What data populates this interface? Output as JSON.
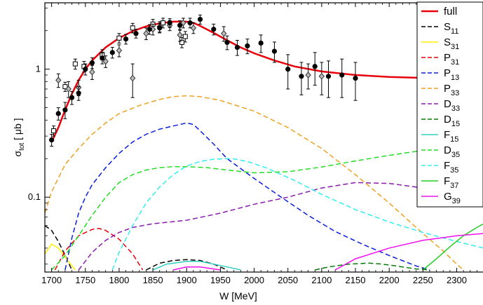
{
  "chart_data": {
    "type": "line",
    "title": "",
    "xlabel": "W [MeV]",
    "ylabel": "σ_tot [ μb ]",
    "ylabel_parts": {
      "sigma": "σ",
      "sub": "tot",
      "rest": " [ μb ]"
    },
    "xlim": [
      1690,
      2340
    ],
    "ylim": [
      0.026,
      3.3
    ],
    "yscale": "log",
    "x_ticks": [
      1700,
      1750,
      1800,
      1850,
      1900,
      1950,
      2000,
      2050,
      2100,
      2150,
      2200,
      2250,
      2300
    ],
    "y_ticks": [
      {
        "value": 0.1,
        "label": "0.1"
      },
      {
        "value": 1,
        "label": "1"
      }
    ],
    "grid": false,
    "legend_position": "right",
    "series": [
      {
        "name": "full",
        "label_main": "full",
        "label_sub": "",
        "color": "#e8000b",
        "dash": "solid",
        "width": 2.5,
        "x": [
          1700,
          1710,
          1720,
          1730,
          1740,
          1750,
          1760,
          1780,
          1800,
          1820,
          1840,
          1860,
          1880,
          1900,
          1910,
          1920,
          1940,
          1960,
          1980,
          2000,
          2030,
          2060,
          2100,
          2150,
          2200,
          2250,
          2300,
          2340
        ],
        "y": [
          0.27,
          0.35,
          0.48,
          0.64,
          0.82,
          1.0,
          1.17,
          1.48,
          1.75,
          1.98,
          2.16,
          2.28,
          2.35,
          2.35,
          2.3,
          2.18,
          1.92,
          1.68,
          1.48,
          1.33,
          1.17,
          1.05,
          0.96,
          0.9,
          0.87,
          0.855,
          0.845,
          0.84
        ]
      },
      {
        "name": "S11",
        "label_main": "S",
        "label_sub": "11",
        "color": "#000000",
        "dash": "dashed",
        "width": 1.5,
        "x": [
          1690,
          1700,
          1710,
          1720,
          1730
        ],
        "y": [
          0.06,
          0.055,
          0.045,
          0.035,
          0.027
        ],
        "x2": [
          1840,
          1860,
          1880,
          1900,
          1920,
          1940,
          1960
        ],
        "y2": [
          0.027,
          0.0305,
          0.032,
          0.0325,
          0.032,
          0.03,
          0.027
        ]
      },
      {
        "name": "S31",
        "label_main": "S",
        "label_sub": "31",
        "color": "#ffee00",
        "dash": "solid",
        "width": 1.5,
        "x": [
          1690,
          1700,
          1710,
          1720,
          1735
        ],
        "y": [
          0.036,
          0.043,
          0.04,
          0.034,
          0.027
        ]
      },
      {
        "name": "P31",
        "label_main": "P",
        "label_sub": "31",
        "color": "#e8000b",
        "dash": "dashed",
        "width": 1.5,
        "x": [
          1705,
          1720,
          1740,
          1760,
          1770,
          1780,
          1800,
          1820,
          1835
        ],
        "y": [
          0.027,
          0.038,
          0.05,
          0.056,
          0.057,
          0.055,
          0.047,
          0.036,
          0.027
        ]
      },
      {
        "name": "P13",
        "label_main": "P",
        "label_sub": "13",
        "color": "#0a1ee0",
        "dash": "dashed",
        "width": 1.5,
        "x": [
          1720,
          1730,
          1740,
          1750,
          1760,
          1780,
          1800,
          1820,
          1840,
          1860,
          1880,
          1900,
          1910,
          1920,
          1940,
          1960,
          2000,
          2040,
          2080,
          2120,
          2160,
          2200,
          2240,
          2260
        ],
        "y": [
          0.027,
          0.048,
          0.075,
          0.1,
          0.125,
          0.17,
          0.22,
          0.27,
          0.31,
          0.34,
          0.36,
          0.38,
          0.37,
          0.33,
          0.26,
          0.2,
          0.14,
          0.1,
          0.072,
          0.054,
          0.043,
          0.035,
          0.029,
          0.027
        ]
      },
      {
        "name": "P33",
        "label_main": "P",
        "label_sub": "33",
        "color": "#f0a020",
        "dash": "dashed",
        "width": 1.5,
        "x": [
          1690,
          1700,
          1720,
          1740,
          1760,
          1780,
          1800,
          1830,
          1860,
          1880,
          1900,
          1920,
          1950,
          2000,
          2050,
          2100,
          2150,
          2200,
          2250,
          2280,
          2300,
          2310
        ],
        "y": [
          0.075,
          0.11,
          0.18,
          0.24,
          0.31,
          0.38,
          0.45,
          0.52,
          0.58,
          0.61,
          0.62,
          0.61,
          0.57,
          0.47,
          0.35,
          0.24,
          0.15,
          0.09,
          0.052,
          0.038,
          0.03,
          0.027
        ]
      },
      {
        "name": "D33",
        "label_main": "D",
        "label_sub": "33",
        "color": "#8a1bb0",
        "dash": "dashed",
        "width": 1.5,
        "x": [
          1740,
          1760,
          1780,
          1800,
          1820,
          1850,
          1900,
          1950,
          2000,
          2050,
          2100,
          2150,
          2200,
          2250,
          2300,
          2340
        ],
        "y": [
          0.027,
          0.037,
          0.046,
          0.053,
          0.058,
          0.062,
          0.066,
          0.075,
          0.088,
          0.1,
          0.118,
          0.13,
          0.128,
          0.118,
          0.1,
          0.092
        ]
      },
      {
        "name": "D15",
        "label_main": "D",
        "label_sub": "15",
        "color": "#067a06",
        "dash": "dashed",
        "width": 1.5,
        "x": [
          2090,
          2110,
          2140,
          2170,
          2190,
          2210,
          2240,
          2260
        ],
        "y": [
          0.027,
          0.0285,
          0.03,
          0.0305,
          0.03,
          0.029,
          0.0275,
          0.027
        ]
      },
      {
        "name": "F15",
        "label_main": "F",
        "label_sub": "15",
        "color": "#30d0c0",
        "dash": "solid",
        "width": 1.5,
        "x": [
          1850,
          1870,
          1900,
          1920,
          1940,
          1960,
          1980
        ],
        "y": [
          0.027,
          0.03,
          0.0315,
          0.0315,
          0.03,
          0.0285,
          0.027
        ]
      },
      {
        "name": "D35",
        "label_main": "D",
        "label_sub": "35",
        "color": "#22dd22",
        "dash": "dashed",
        "width": 1.5,
        "x": [
          1700,
          1720,
          1740,
          1760,
          1780,
          1800,
          1820,
          1840,
          1860,
          1880,
          1900,
          1930,
          1960,
          2000,
          2050,
          2100,
          2150,
          2200,
          2250,
          2300,
          2340
        ],
        "y": [
          0.027,
          0.035,
          0.05,
          0.072,
          0.1,
          0.13,
          0.15,
          0.163,
          0.17,
          0.173,
          0.173,
          0.17,
          0.163,
          0.155,
          0.158,
          0.172,
          0.192,
          0.212,
          0.232,
          0.25,
          0.262
        ]
      },
      {
        "name": "F35",
        "label_main": "F",
        "label_sub": "35",
        "color": "#33eeee",
        "dash": "dashed",
        "width": 1.5,
        "x": [
          1790,
          1800,
          1820,
          1840,
          1860,
          1880,
          1900,
          1920,
          1940,
          1960,
          1970,
          1990,
          2020,
          2060,
          2100,
          2150,
          2200,
          2250,
          2300,
          2340
        ],
        "y": [
          0.027,
          0.037,
          0.06,
          0.09,
          0.12,
          0.15,
          0.175,
          0.19,
          0.198,
          0.2,
          0.199,
          0.19,
          0.168,
          0.135,
          0.105,
          0.08,
          0.064,
          0.053,
          0.045,
          0.04
        ]
      },
      {
        "name": "F37",
        "label_main": "F",
        "label_sub": "37",
        "color": "#22cc22",
        "dash": "solid",
        "width": 1.5,
        "x": [
          2250,
          2270,
          2290,
          2310,
          2330,
          2340
        ],
        "y": [
          0.027,
          0.033,
          0.041,
          0.05,
          0.058,
          0.062
        ]
      },
      {
        "name": "G39",
        "label_main": "G",
        "label_sub": "39",
        "color": "#ee11ee",
        "dash": "solid",
        "width": 1.5,
        "x": [
          1880,
          1900,
          1920,
          1940,
          1950
        ],
        "y": [
          0.027,
          0.0285,
          0.0285,
          0.0275,
          0.027
        ],
        "x2": [
          2120,
          2150,
          2200,
          2250,
          2300,
          2340
        ],
        "y2": [
          0.027,
          0.033,
          0.04,
          0.046,
          0.05,
          0.052
        ]
      }
    ],
    "data_filled": {
      "name": "data (filled circles)",
      "x": [
        1700,
        1710,
        1720,
        1730,
        1740,
        1750,
        1760,
        1775,
        1790,
        1810,
        1825,
        1845,
        1860,
        1875,
        1890,
        1905,
        1920,
        1940,
        1960,
        1975,
        1990,
        2010,
        2030,
        2050,
        2070,
        2090,
        2110,
        2130,
        2150
      ],
      "y": [
        0.28,
        0.45,
        0.48,
        0.6,
        0.65,
        1.0,
        1.12,
        1.22,
        1.35,
        1.72,
        1.9,
        2.05,
        2.1,
        2.3,
        2.2,
        2.3,
        2.45,
        2.05,
        1.62,
        1.48,
        1.52,
        1.6,
        1.38,
        1.0,
        0.88,
        1.05,
        0.88,
        0.9,
        0.85
      ],
      "err": [
        0.03,
        0.05,
        0.07,
        0.07,
        0.08,
        0.1,
        0.11,
        0.12,
        0.13,
        0.15,
        0.15,
        0.18,
        0.18,
        0.18,
        0.19,
        0.2,
        0.2,
        0.2,
        0.2,
        0.2,
        0.2,
        0.25,
        0.25,
        0.3,
        0.25,
        0.3,
        0.28,
        0.3,
        0.28
      ]
    },
    "data_open_squares": {
      "name": "data (open squares)",
      "x": [
        1703,
        1720,
        1735,
        1748,
        1775,
        1800,
        1820,
        1850,
        1865,
        1893,
        1898
      ],
      "y": [
        0.33,
        0.73,
        1.1,
        1.05,
        1.3,
        1.75,
        2.1,
        2.25,
        2.3,
        1.62,
        1.8
      ],
      "err": [
        0.03,
        0.06,
        0.1,
        0.1,
        0.12,
        0.15,
        0.18,
        0.2,
        0.2,
        0.15,
        0.17
      ]
    },
    "data_diamonds": {
      "name": "data (open diamonds)",
      "x": [
        1710,
        1725,
        1740,
        1760,
        1780,
        1800,
        1820,
        1840,
        1850,
        1860,
        1875,
        1890,
        1895,
        1910,
        1955,
        2080,
        2100
      ],
      "y": [
        0.82,
        0.7,
        0.72,
        0.95,
        1.15,
        1.4,
        0.85,
        1.9,
        2.05,
        2.15,
        2.2,
        1.85,
        2.3,
        2.1,
        1.9,
        0.9,
        0.88
      ],
      "err": [
        0.1,
        0.1,
        0.1,
        0.12,
        0.12,
        0.15,
        0.25,
        0.2,
        0.2,
        0.2,
        0.2,
        0.2,
        0.2,
        0.2,
        0.25,
        0.2,
        0.25
      ]
    }
  }
}
